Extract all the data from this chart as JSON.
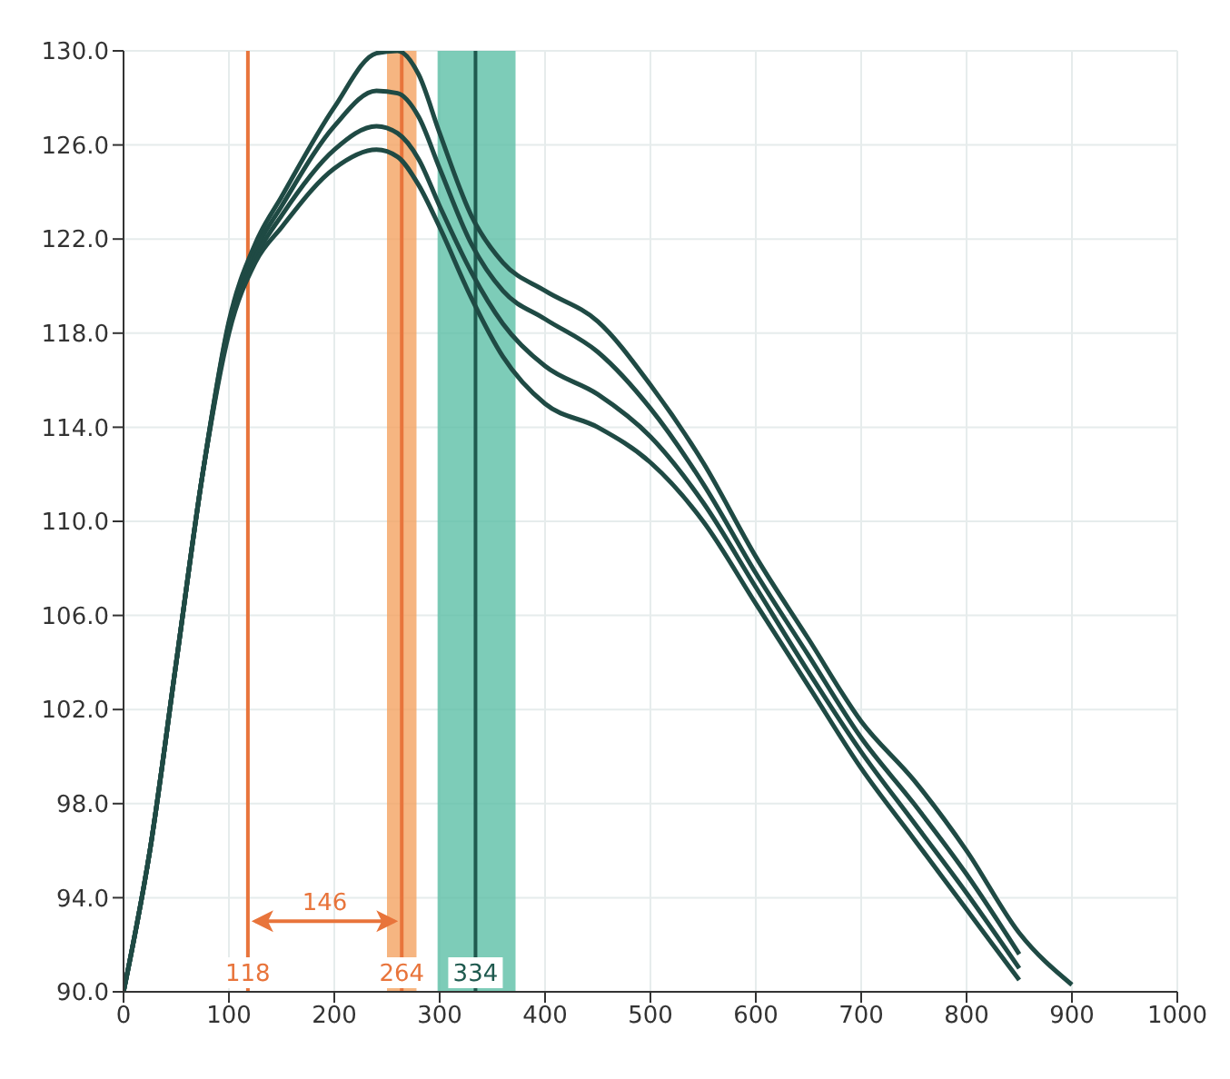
{
  "chart_data": {
    "type": "line",
    "x": [
      0,
      25,
      50,
      75,
      100,
      125,
      150,
      200,
      240,
      260,
      280,
      300,
      330,
      360,
      400,
      450,
      500,
      550,
      600,
      650,
      700,
      750,
      800,
      850,
      900
    ],
    "series": [
      {
        "color": "#1f4a44",
        "values": [
          90,
          96,
          104,
          112,
          118.5,
          121.8,
          123.8,
          127.6,
          129.9,
          130,
          129,
          126.5,
          123,
          121,
          119.8,
          118.5,
          115.8,
          112.5,
          108.5,
          105,
          101.5,
          99,
          96,
          92.5,
          90.3
        ]
      },
      {
        "color": "#1f4a44",
        "values": [
          90,
          96,
          104,
          112,
          118.4,
          121.5,
          123.4,
          126.8,
          128.3,
          128.2,
          127.2,
          125,
          121.8,
          119.8,
          118.6,
          117.2,
          114.8,
          111.6,
          107.8,
          104.3,
          100.8,
          98,
          95,
          91.6,
          null
        ]
      },
      {
        "color": "#1f4a44",
        "values": [
          90,
          96,
          104,
          112,
          118.2,
          121.2,
          123,
          125.8,
          126.8,
          126.5,
          125.4,
          123.4,
          120.6,
          118.4,
          116.6,
          115.4,
          113.6,
          110.8,
          107.2,
          103.6,
          100.2,
          97.2,
          94.2,
          91,
          null
        ]
      },
      {
        "color": "#1f4a44",
        "values": [
          90,
          96,
          104,
          112,
          118,
          121,
          122.5,
          125,
          125.8,
          125.5,
          124.3,
          122.5,
          119.5,
          117,
          115,
          114,
          112.5,
          110,
          106.5,
          103,
          99.5,
          96.5,
          93.5,
          90.5,
          null
        ]
      }
    ],
    "xlim": [
      0,
      1000
    ],
    "xticks": [
      0,
      100,
      200,
      300,
      400,
      500,
      600,
      700,
      800,
      900,
      1000
    ],
    "ylim": [
      90,
      130
    ],
    "yticks": [
      {
        "value": 90,
        "label": "90.0"
      },
      {
        "value": 94,
        "label": "94.0"
      },
      {
        "value": 98,
        "label": "98.0"
      },
      {
        "value": 102,
        "label": "102.0"
      },
      {
        "value": 106,
        "label": "106.0"
      },
      {
        "value": 110,
        "label": "110.0"
      },
      {
        "value": 114,
        "label": "114.0"
      },
      {
        "value": 118,
        "label": "118.0"
      },
      {
        "value": 122,
        "label": "122.0"
      },
      {
        "value": 126,
        "label": "126.0"
      },
      {
        "value": 130,
        "label": "130.0"
      }
    ],
    "ref_lines": [
      {
        "axis": "x",
        "value": 118,
        "label": "118",
        "color": "#e8743b"
      },
      {
        "axis": "x",
        "value": 264,
        "label": "264",
        "color": "#e8743b"
      },
      {
        "axis": "x",
        "value": 334,
        "label": "334",
        "color": "#1f5a4f"
      }
    ],
    "bands": [
      {
        "axis": "x",
        "from": 250,
        "to": 278,
        "color": "#f4a261"
      },
      {
        "axis": "x",
        "from": 298,
        "to": 372,
        "color": "#5dbfa6"
      }
    ],
    "annotations": [
      "146"
    ],
    "grid": true,
    "marker": "none",
    "line_style": "solid"
  }
}
